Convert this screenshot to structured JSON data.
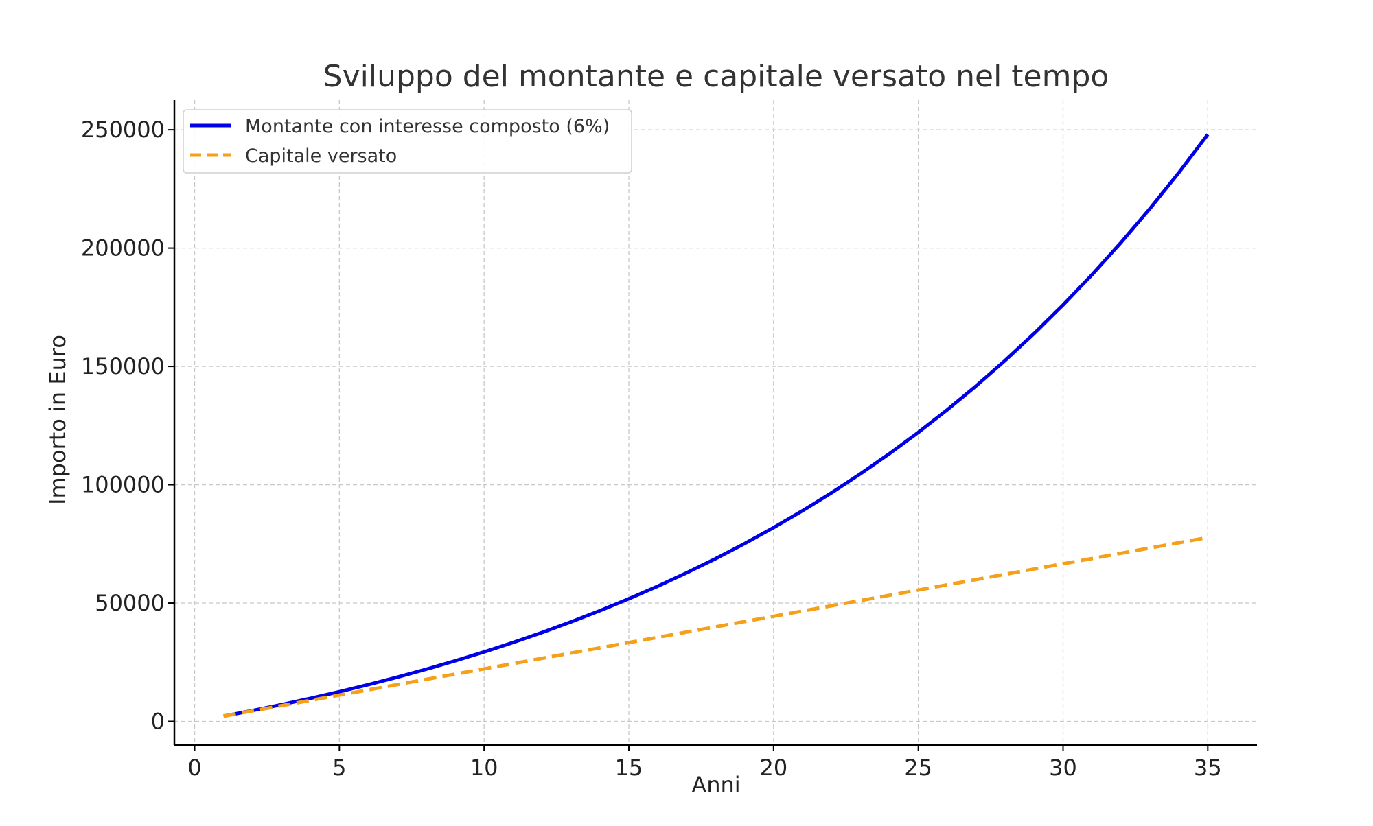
{
  "chart_data": {
    "type": "line",
    "title": "Sviluppo del montante e capitale versato nel tempo",
    "xlabel": "Anni",
    "ylabel": "Importo in Euro",
    "xlim": [
      -0.7,
      36.7
    ],
    "ylim": [
      -10000,
      262500
    ],
    "x_ticks": [
      0,
      5,
      10,
      15,
      20,
      25,
      30,
      35
    ],
    "y_ticks": [
      0,
      50000,
      100000,
      150000,
      200000,
      250000
    ],
    "x_tick_labels": [
      "0",
      "5",
      "10",
      "15",
      "20",
      "25",
      "30",
      "35"
    ],
    "y_tick_labels": [
      "0",
      "50000",
      "100000",
      "150000",
      "200000",
      "250000"
    ],
    "grid": true,
    "legend_position": "top-left",
    "x": [
      1,
      2,
      3,
      4,
      5,
      6,
      7,
      8,
      9,
      10,
      11,
      12,
      13,
      14,
      15,
      16,
      17,
      18,
      19,
      20,
      21,
      22,
      23,
      24,
      25,
      26,
      27,
      28,
      29,
      30,
      31,
      32,
      33,
      34,
      35
    ],
    "series": [
      {
        "name": "Montante con interesse composto (6%)",
        "color": "#0000e6",
        "style": "solid",
        "values": [
          2226,
          4585,
          7086,
          9737,
          12547,
          15525,
          18682,
          22029,
          25576,
          29336,
          33322,
          37547,
          42026,
          46773,
          51806,
          57140,
          62794,
          68787,
          75141,
          81875,
          89013,
          96580,
          104600,
          113102,
          122114,
          131667,
          141792,
          152526,
          163903,
          175963,
          188746,
          202296,
          216660,
          231885,
          248023
        ]
      },
      {
        "name": "Capitale versato",
        "color": "#f5a01a",
        "style": "dashed",
        "values": [
          2220,
          4440,
          6660,
          8880,
          11100,
          13320,
          15540,
          17760,
          19980,
          22200,
          24420,
          26640,
          28860,
          31080,
          33300,
          35520,
          37740,
          39960,
          42180,
          44400,
          46620,
          48840,
          51060,
          53280,
          55500,
          57720,
          59940,
          62160,
          64380,
          66600,
          68820,
          71040,
          73260,
          75480,
          77700
        ]
      }
    ]
  }
}
